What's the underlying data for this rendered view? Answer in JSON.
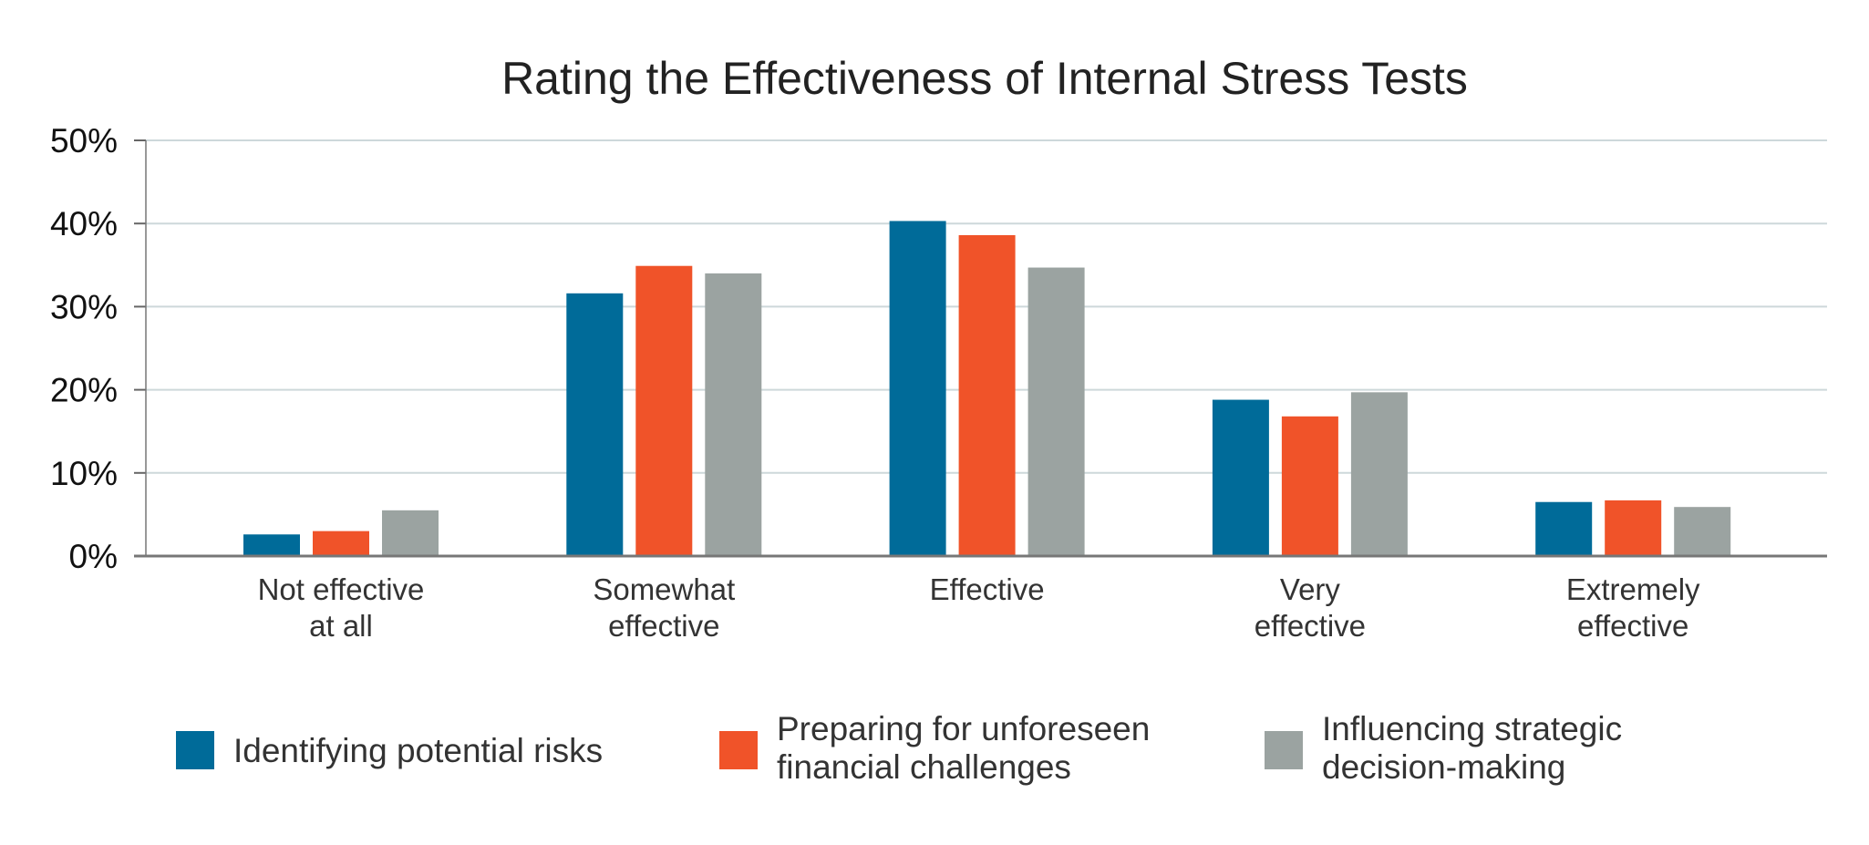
{
  "chart_data": {
    "type": "bar",
    "title": "Rating the Effectiveness of Internal Stress Tests",
    "xlabel": "",
    "ylabel": "",
    "ylim": [
      0,
      50
    ],
    "y_ticks": [
      "0%",
      "10%",
      "20%",
      "30%",
      "40%",
      "50%"
    ],
    "grid": true,
    "legend_position": "bottom",
    "categories": [
      [
        "Not effective",
        "at all"
      ],
      [
        "Somewhat",
        "effective"
      ],
      [
        "Effective"
      ],
      [
        "Very",
        "effective"
      ],
      [
        "Extremely",
        "effective"
      ]
    ],
    "series": [
      {
        "name": [
          "Identifying potential risks"
        ],
        "color": "#006B99",
        "values": [
          2.6,
          31.6,
          40.3,
          18.8,
          6.5
        ]
      },
      {
        "name": [
          "Preparing for unforeseen",
          "financial challenges"
        ],
        "color": "#F05329",
        "values": [
          3.0,
          34.9,
          38.6,
          16.8,
          6.7
        ]
      },
      {
        "name": [
          "Influencing strategic",
          "decision-making"
        ],
        "color": "#9BA3A1",
        "values": [
          5.5,
          34.0,
          34.7,
          19.7,
          5.9
        ]
      }
    ]
  }
}
